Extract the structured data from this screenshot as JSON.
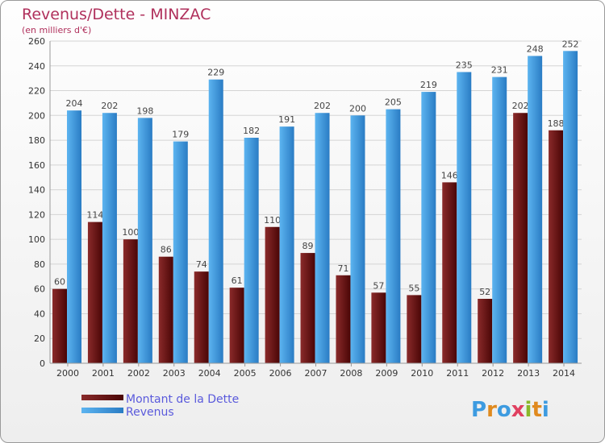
{
  "chart_data": {
    "type": "bar",
    "title": "Revenus/Dette - MINZAC",
    "subtitle": "(en milliers d'€)",
    "categories": [
      "2000",
      "2001",
      "2002",
      "2003",
      "2004",
      "2005",
      "2006",
      "2007",
      "2008",
      "2009",
      "2010",
      "2011",
      "2012",
      "2013",
      "2014"
    ],
    "series": [
      {
        "name": "Montant de la Dette",
        "color": "#7a1c1c",
        "values": [
          60,
          114,
          100,
          86,
          74,
          61,
          110,
          89,
          71,
          57,
          55,
          146,
          52,
          202,
          188
        ]
      },
      {
        "name": "Revenus",
        "color": "#3d9be0",
        "values": [
          204,
          202,
          198,
          179,
          229,
          182,
          191,
          202,
          200,
          205,
          219,
          235,
          231,
          248,
          252
        ]
      }
    ],
    "ylim": [
      0,
      260
    ],
    "yticks": [
      0,
      20,
      40,
      60,
      80,
      100,
      120,
      140,
      160,
      180,
      200,
      220,
      240,
      260
    ],
    "grid": true,
    "legend_position": "bottom-left"
  },
  "logo": {
    "letters": [
      "P",
      "r",
      "o",
      "x",
      "i",
      "t",
      "i"
    ],
    "colors": [
      "#3d9be0",
      "#e08a1e",
      "#3d9be0",
      "#e04060",
      "#8ab82a",
      "#e08a1e",
      "#3d9be0"
    ]
  }
}
